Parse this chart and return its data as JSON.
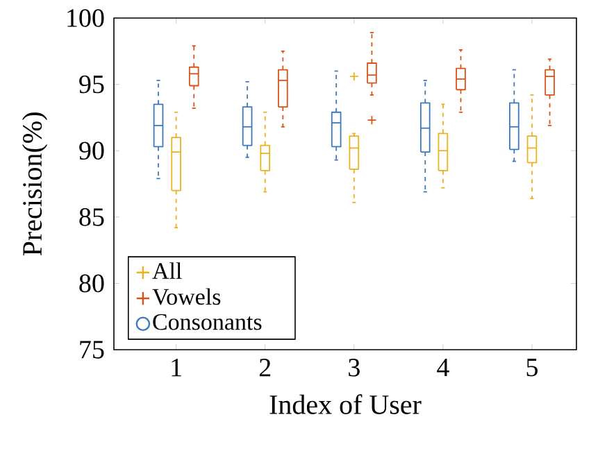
{
  "chart_data": {
    "type": "box",
    "xlabel": "Index of User",
    "ylabel": "Precision(%)",
    "categories": [
      "1",
      "2",
      "3",
      "4",
      "5"
    ],
    "ylim": [
      75,
      100
    ],
    "yticks": [
      75,
      80,
      85,
      90,
      95,
      100
    ],
    "legend": "bottom left",
    "grid": false,
    "line_style": "dashed",
    "series": [
      {
        "name": "All",
        "color": "#edb120",
        "marker": "cross",
        "boxes": [
          {
            "low": 84.2,
            "q1": 87.0,
            "median": 89.9,
            "q3": 91.0,
            "high": 92.9
          },
          {
            "low": 86.9,
            "q1": 88.5,
            "median": 89.8,
            "q3": 90.4,
            "high": 92.9
          },
          {
            "low": 86.1,
            "q1": 88.6,
            "median": 90.2,
            "q3": 91.1,
            "high": 91.3,
            "outliers": [
              95.6
            ]
          },
          {
            "low": 87.2,
            "q1": 88.5,
            "median": 90.0,
            "q3": 91.3,
            "high": 93.5
          },
          {
            "low": 86.4,
            "q1": 89.1,
            "median": 90.2,
            "q3": 91.1,
            "high": 94.2
          }
        ]
      },
      {
        "name": "Vowels",
        "color": "#d95319",
        "marker": "cross",
        "boxes": [
          {
            "low": 93.2,
            "q1": 94.9,
            "median": 95.8,
            "q3": 96.3,
            "high": 97.9
          },
          {
            "low": 91.8,
            "q1": 93.3,
            "median": 95.3,
            "q3": 96.1,
            "high": 97.5
          },
          {
            "low": 94.2,
            "q1": 95.1,
            "median": 95.7,
            "q3": 96.6,
            "high": 98.9,
            "outliers": [
              92.3
            ]
          },
          {
            "low": 92.9,
            "q1": 94.6,
            "median": 95.4,
            "q3": 96.2,
            "high": 97.6
          },
          {
            "low": 91.9,
            "q1": 94.2,
            "median": 95.6,
            "q3": 96.1,
            "high": 96.9
          }
        ]
      },
      {
        "name": "Consonants",
        "color": "#3a78c0",
        "marker": "circle",
        "boxes": [
          {
            "low": 87.9,
            "q1": 90.3,
            "median": 91.9,
            "q3": 93.5,
            "high": 95.3
          },
          {
            "low": 89.5,
            "q1": 90.4,
            "median": 91.8,
            "q3": 93.3,
            "high": 95.2
          },
          {
            "low": 89.3,
            "q1": 90.3,
            "median": 92.1,
            "q3": 92.9,
            "high": 96.0
          },
          {
            "low": 86.9,
            "q1": 89.9,
            "median": 91.7,
            "q3": 93.6,
            "high": 95.3
          },
          {
            "low": 89.2,
            "q1": 90.1,
            "median": 91.8,
            "q3": 93.6,
            "high": 96.1
          }
        ]
      }
    ]
  }
}
